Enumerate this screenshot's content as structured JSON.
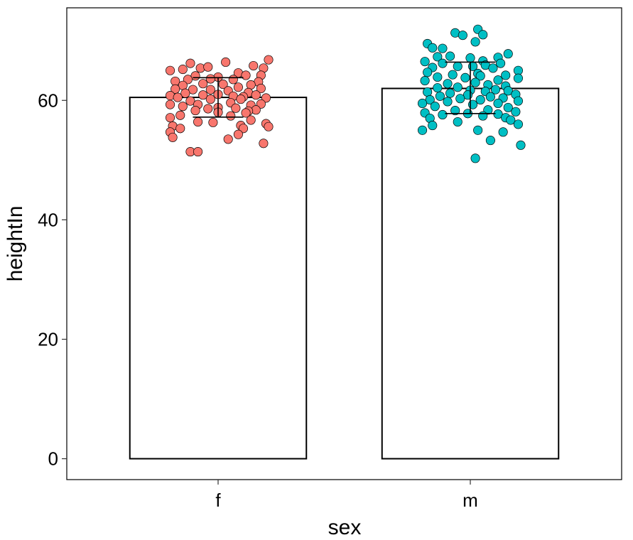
{
  "chart_data": {
    "type": "bar",
    "xlabel": "sex",
    "ylabel": "heightIn",
    "categories": [
      "f",
      "m"
    ],
    "values": [
      60.5,
      62.0
    ],
    "error_bars": [
      {
        "category": "f",
        "low": 57.2,
        "high": 63.8
      },
      {
        "category": "m",
        "low": 57.8,
        "high": 66.4
      }
    ],
    "ylim": [
      -3.5,
      75.5
    ],
    "yticks": [
      0,
      20,
      40,
      60
    ],
    "grid": false,
    "legend": "none",
    "bar_fill": "#ffffff",
    "bar_outline": "#000000",
    "point_colors": {
      "f": "#F8766D",
      "m": "#00BFC4"
    },
    "points": {
      "f": [
        [
          0.03,
          66.4
        ],
        [
          -0.11,
          66.2
        ],
        [
          0.2,
          66.8
        ],
        [
          0.14,
          65.8
        ],
        [
          -0.19,
          65.0
        ],
        [
          -0.14,
          65.2
        ],
        [
          -0.07,
          65.4
        ],
        [
          -0.04,
          65.6
        ],
        [
          0.18,
          65.4
        ],
        [
          0.08,
          64.6
        ],
        [
          0.11,
          64.2
        ],
        [
          -0.09,
          64.1
        ],
        [
          0.17,
          64.2
        ],
        [
          0.0,
          63.9
        ],
        [
          -0.03,
          63.6
        ],
        [
          -0.12,
          63.5
        ],
        [
          -0.17,
          63.2
        ],
        [
          0.06,
          63.5
        ],
        [
          0.16,
          63.1
        ],
        [
          0.13,
          62.6
        ],
        [
          -0.06,
          62.8
        ],
        [
          -0.14,
          62.5
        ],
        [
          0.02,
          62.7
        ],
        [
          0.08,
          62.2
        ],
        [
          0.17,
          62.0
        ],
        [
          -0.17,
          61.9
        ],
        [
          -0.1,
          61.8
        ],
        [
          -0.03,
          61.8
        ],
        [
          0.04,
          61.6
        ],
        [
          0.12,
          61.3
        ],
        [
          -0.13,
          61.2
        ],
        [
          -0.19,
          60.8
        ],
        [
          0.0,
          61.0
        ],
        [
          0.15,
          60.9
        ],
        [
          -0.06,
          60.9
        ],
        [
          0.1,
          60.6
        ],
        [
          0.06,
          60.7
        ],
        [
          -0.16,
          60.5
        ],
        [
          0.19,
          60.4
        ],
        [
          -0.03,
          60.2
        ],
        [
          0.09,
          60.2
        ],
        [
          -0.11,
          59.9
        ],
        [
          -0.19,
          59.3
        ],
        [
          0.05,
          59.6
        ],
        [
          0.17,
          59.4
        ],
        [
          -0.08,
          59.3
        ],
        [
          0.13,
          59.2
        ],
        [
          -0.14,
          59.0
        ],
        [
          0.0,
          58.8
        ],
        [
          0.07,
          58.7
        ],
        [
          -0.04,
          58.6
        ],
        [
          0.15,
          58.4
        ],
        [
          0.12,
          58.2
        ],
        [
          -0.09,
          58.3
        ],
        [
          0.0,
          58.0
        ],
        [
          0.11,
          57.9
        ],
        [
          -0.15,
          57.5
        ],
        [
          -0.19,
          57.1
        ],
        [
          0.05,
          57.4
        ],
        [
          0.13,
          56.7
        ],
        [
          -0.02,
          56.3
        ],
        [
          -0.08,
          56.4
        ],
        [
          0.19,
          56.1
        ],
        [
          0.09,
          55.8
        ],
        [
          -0.18,
          55.7
        ],
        [
          0.2,
          55.6
        ],
        [
          -0.15,
          55.3
        ],
        [
          0.1,
          55.3
        ],
        [
          -0.19,
          54.7
        ],
        [
          0.08,
          54.3
        ],
        [
          -0.18,
          53.8
        ],
        [
          0.04,
          53.5
        ],
        [
          0.18,
          52.8
        ],
        [
          -0.11,
          51.4
        ],
        [
          -0.08,
          51.4
        ]
      ],
      "m": [
        [
          0.03,
          71.9
        ],
        [
          -0.06,
          71.3
        ],
        [
          0.05,
          71.0
        ],
        [
          -0.03,
          70.9
        ],
        [
          -0.17,
          69.5
        ],
        [
          0.02,
          69.8
        ],
        [
          -0.15,
          68.8
        ],
        [
          -0.11,
          68.7
        ],
        [
          0.15,
          67.8
        ],
        [
          -0.08,
          67.4
        ],
        [
          -0.13,
          67.3
        ],
        [
          0.11,
          67.2
        ],
        [
          0.0,
          67.1
        ],
        [
          0.05,
          66.6
        ],
        [
          -0.18,
          66.5
        ],
        [
          0.12,
          66.2
        ],
        [
          -0.11,
          66.2
        ],
        [
          0.06,
          65.9
        ],
        [
          -0.15,
          65.5
        ],
        [
          0.01,
          65.7
        ],
        [
          -0.05,
          65.7
        ],
        [
          0.09,
          65.4
        ],
        [
          0.19,
          65.0
        ],
        [
          -0.17,
          64.7
        ],
        [
          0.03,
          64.5
        ],
        [
          -0.07,
          64.3
        ],
        [
          0.14,
          64.2
        ],
        [
          0.04,
          64.1
        ],
        [
          -0.13,
          63.9
        ],
        [
          -0.02,
          63.8
        ],
        [
          0.19,
          63.7
        ],
        [
          0.11,
          63.4
        ],
        [
          -0.18,
          63.3
        ],
        [
          0.02,
          63.0
        ],
        [
          -0.09,
          62.8
        ],
        [
          0.07,
          62.6
        ],
        [
          0.14,
          62.4
        ],
        [
          -0.05,
          62.2
        ],
        [
          -0.13,
          62.1
        ],
        [
          0.1,
          61.8
        ],
        [
          0.0,
          61.7
        ],
        [
          0.15,
          61.6
        ],
        [
          -0.17,
          61.4
        ],
        [
          0.06,
          61.5
        ],
        [
          -0.08,
          61.2
        ],
        [
          0.18,
          61.0
        ],
        [
          -0.01,
          60.9
        ],
        [
          -0.12,
          60.7
        ],
        [
          0.08,
          60.6
        ],
        [
          0.13,
          60.4
        ],
        [
          -0.04,
          60.3
        ],
        [
          -0.16,
          60.1
        ],
        [
          0.04,
          60.1
        ],
        [
          0.19,
          59.9
        ],
        [
          -0.09,
          59.8
        ],
        [
          -0.19,
          59.5
        ],
        [
          0.11,
          59.5
        ],
        [
          0.01,
          59.3
        ],
        [
          -0.14,
          59.0
        ],
        [
          0.15,
          58.8
        ],
        [
          0.07,
          58.4
        ],
        [
          -0.06,
          58.3
        ],
        [
          0.18,
          58.1
        ],
        [
          -0.18,
          57.9
        ],
        [
          -0.01,
          57.8
        ],
        [
          0.11,
          57.7
        ],
        [
          -0.11,
          57.6
        ],
        [
          0.05,
          57.4
        ],
        [
          0.14,
          57.1
        ],
        [
          -0.16,
          57.0
        ],
        [
          0.16,
          56.7
        ],
        [
          -0.05,
          56.4
        ],
        [
          0.19,
          56.0
        ],
        [
          -0.15,
          55.8
        ],
        [
          -0.19,
          55.0
        ],
        [
          0.03,
          55.0
        ],
        [
          0.13,
          54.7
        ],
        [
          0.08,
          53.3
        ],
        [
          0.2,
          52.5
        ],
        [
          0.02,
          50.3
        ]
      ]
    }
  }
}
